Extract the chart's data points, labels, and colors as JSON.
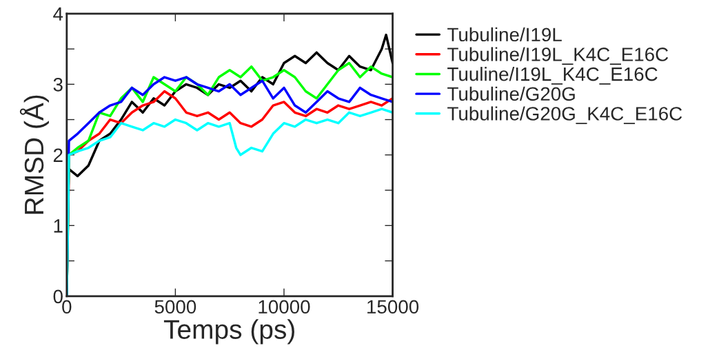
{
  "chart_data": {
    "type": "line",
    "xlabel": "Temps (ps)",
    "ylabel": "RMSD (Å)",
    "xlim": [
      0,
      15000
    ],
    "ylim": [
      0,
      4
    ],
    "xticks": [
      0,
      5000,
      10000,
      15000
    ],
    "yticks": [
      0,
      {
        "value": 0.5,
        "label": null
      },
      1,
      {
        "value": 1.5,
        "label": null
      },
      2,
      {
        "value": 2.5,
        "label": null
      },
      3,
      {
        "value": 3.5,
        "label": null
      },
      4
    ],
    "grid": false,
    "legend": "right",
    "line_style": "solid",
    "marker": "none",
    "series": [
      {
        "name": "Tubuline/I19L",
        "color": "#000000",
        "x": [
          0,
          100,
          500,
          1000,
          1500,
          2000,
          2500,
          3000,
          3500,
          4000,
          4500,
          5000,
          5500,
          6000,
          6500,
          7000,
          7500,
          8000,
          8500,
          9000,
          9500,
          10000,
          10500,
          11000,
          11500,
          12000,
          12500,
          13000,
          13500,
          14000,
          14500,
          14700,
          15000
        ],
        "values": [
          0,
          1.8,
          1.7,
          1.85,
          2.2,
          2.3,
          2.5,
          2.75,
          2.6,
          2.8,
          2.7,
          2.9,
          3.0,
          2.95,
          2.85,
          3.0,
          2.95,
          3.05,
          2.9,
          3.1,
          3.0,
          3.3,
          3.4,
          3.3,
          3.45,
          3.3,
          3.2,
          3.4,
          3.25,
          3.2,
          3.5,
          3.7,
          3.3
        ]
      },
      {
        "name": "Tubuline/I19L_K4C_E16C",
        "color": "#ff0000",
        "x": [
          0,
          100,
          500,
          1000,
          1500,
          2000,
          2500,
          3000,
          3500,
          4000,
          4500,
          5000,
          5500,
          6000,
          6500,
          7000,
          7500,
          8000,
          8500,
          9000,
          9500,
          10000,
          10500,
          11000,
          11500,
          12000,
          12500,
          13000,
          13500,
          14000,
          14500,
          15000
        ],
        "values": [
          0,
          2.0,
          2.05,
          2.2,
          2.3,
          2.5,
          2.45,
          2.6,
          2.7,
          2.75,
          2.9,
          2.8,
          2.6,
          2.55,
          2.6,
          2.5,
          2.6,
          2.45,
          2.4,
          2.5,
          2.7,
          2.75,
          2.6,
          2.55,
          2.65,
          2.6,
          2.7,
          2.65,
          2.7,
          2.75,
          2.7,
          2.8
        ]
      },
      {
        "name": "Tuuline/I19L_K4C_E16C",
        "color": "#00ff00",
        "x": [
          0,
          100,
          500,
          1000,
          1500,
          2000,
          2500,
          3000,
          3500,
          4000,
          4500,
          5000,
          5500,
          6000,
          6500,
          7000,
          7500,
          8000,
          8500,
          9000,
          9500,
          10000,
          10500,
          11000,
          11500,
          12000,
          12500,
          13000,
          13500,
          14000,
          14500,
          15000
        ],
        "values": [
          0,
          2.0,
          2.1,
          2.2,
          2.6,
          2.55,
          2.8,
          2.95,
          2.75,
          3.1,
          3.0,
          2.9,
          3.1,
          3.0,
          2.85,
          3.1,
          3.2,
          3.1,
          3.25,
          3.05,
          3.1,
          3.2,
          3.1,
          2.9,
          2.8,
          3.0,
          3.2,
          3.3,
          3.1,
          3.25,
          3.15,
          3.1
        ]
      },
      {
        "name": "Tubuline/G20G",
        "color": "#0000ff",
        "x": [
          0,
          100,
          500,
          1000,
          1500,
          2000,
          2500,
          3000,
          3500,
          4000,
          4500,
          5000,
          5500,
          6000,
          6500,
          7000,
          7500,
          8000,
          8500,
          9000,
          9500,
          10000,
          10500,
          11000,
          11500,
          12000,
          12500,
          13000,
          13500,
          14000,
          14500,
          15000
        ],
        "values": [
          0,
          2.2,
          2.3,
          2.45,
          2.6,
          2.7,
          2.75,
          2.95,
          2.85,
          3.0,
          3.1,
          3.05,
          3.1,
          3.0,
          2.95,
          2.9,
          3.0,
          2.85,
          2.95,
          3.05,
          2.8,
          2.95,
          2.7,
          2.6,
          2.75,
          2.9,
          2.8,
          2.75,
          2.95,
          2.85,
          2.8,
          2.75
        ]
      },
      {
        "name": "Tubuline/G20G_K4C_E16C",
        "color": "#00ffff",
        "x": [
          0,
          100,
          500,
          1000,
          1500,
          2000,
          2500,
          3000,
          3500,
          4000,
          4500,
          5000,
          5500,
          6000,
          6500,
          7000,
          7500,
          7800,
          8000,
          8500,
          9000,
          9500,
          10000,
          10500,
          11000,
          11500,
          12000,
          12500,
          13000,
          13500,
          14000,
          14500,
          15000
        ],
        "values": [
          0,
          2.0,
          2.05,
          2.1,
          2.2,
          2.25,
          2.45,
          2.4,
          2.35,
          2.45,
          2.4,
          2.5,
          2.45,
          2.35,
          2.45,
          2.4,
          2.45,
          2.1,
          2.0,
          2.1,
          2.05,
          2.3,
          2.45,
          2.4,
          2.5,
          2.45,
          2.5,
          2.45,
          2.6,
          2.55,
          2.6,
          2.65,
          2.6
        ]
      }
    ]
  }
}
